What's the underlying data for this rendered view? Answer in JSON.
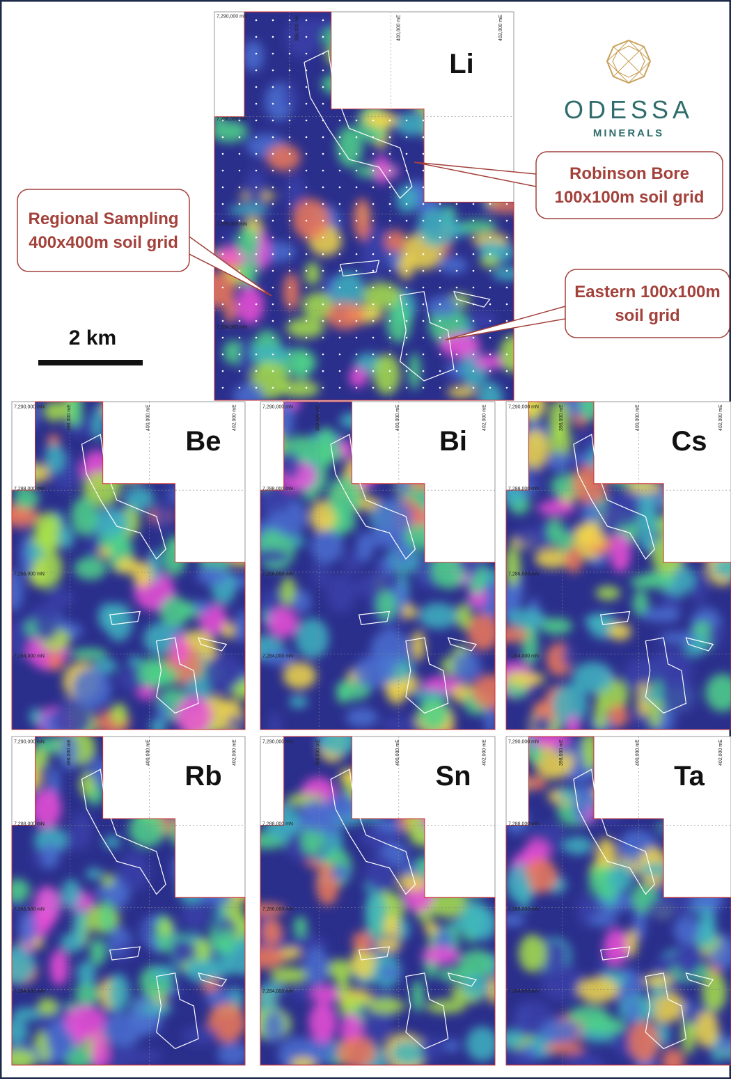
{
  "logo": {
    "name": "ODESSA",
    "tagline": "MINERALS"
  },
  "scale_bar": "2 km",
  "grid_labels": {
    "northing": [
      "7,290,000 mN",
      "7,288,000 mN",
      "7,286,000 mN",
      "7,284,000 mN"
    ],
    "easting": [
      "398,000 mE",
      "400,000 mE",
      "402,000 mE"
    ]
  },
  "panels": [
    {
      "label": "Li"
    },
    {
      "label": "Be"
    },
    {
      "label": "Bi"
    },
    {
      "label": "Cs"
    },
    {
      "label": "Rb"
    },
    {
      "label": "Sn"
    },
    {
      "label": "Ta"
    }
  ],
  "callouts": [
    {
      "lines": [
        "Robinson Bore",
        "100x100m soil grid"
      ]
    },
    {
      "lines": [
        "Regional Sampling",
        "400x400m soil grid"
      ]
    },
    {
      "lines": [
        "Eastern 100x100m",
        "soil grid"
      ]
    }
  ]
}
